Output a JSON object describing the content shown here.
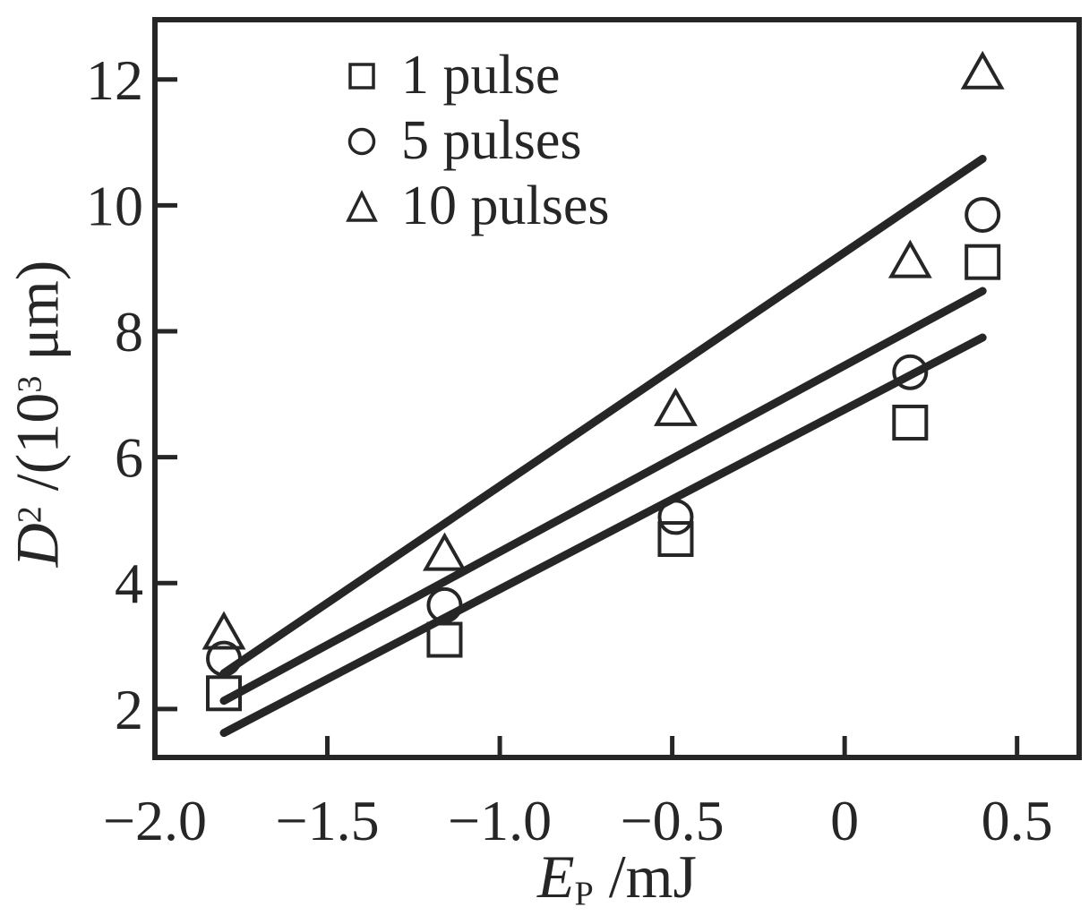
{
  "figure": {
    "background": "#ffffff",
    "ink": "#262626"
  },
  "chart_data": {
    "type": "scatter",
    "title": "",
    "xlabel": {
      "symbol": "E",
      "subscript": "P",
      "unit": " /mJ"
    },
    "ylabel": {
      "symbol": "D",
      "superscript": "2",
      "mid": " /(10",
      "exponent": "3",
      "unit": " μm)"
    },
    "xlim": [
      -2.0,
      0.68
    ],
    "ylim": [
      1.23,
      12.95
    ],
    "grid": false,
    "x_ticks": [
      -2.0,
      -1.5,
      -1.0,
      -0.5,
      0,
      0.5
    ],
    "x_tick_labels": [
      "−2.0",
      "−1.5",
      "−1.0",
      "−0.5",
      "0",
      "0.5"
    ],
    "y_ticks": [
      2,
      4,
      6,
      8,
      10,
      12
    ],
    "y_tick_labels": [
      "2",
      "4",
      "6",
      "8",
      "10",
      "12"
    ],
    "x": [
      -1.8,
      -1.16,
      -0.49,
      0.19,
      0.4
    ],
    "series": [
      {
        "name": "1 pulse",
        "marker": "square",
        "values": [
          2.25,
          3.1,
          4.7,
          6.55,
          9.1
        ],
        "fit_line": {
          "x1": -1.8,
          "y1": 1.62,
          "x2": 0.4,
          "y2": 7.9
        }
      },
      {
        "name": "5 pulses",
        "marker": "circle",
        "values": [
          2.8,
          3.65,
          5.05,
          7.35,
          9.85
        ],
        "fit_line": {
          "x1": -1.8,
          "y1": 2.13,
          "x2": 0.4,
          "y2": 8.64
        }
      },
      {
        "name": "10 pulses",
        "marker": "triangle",
        "values": [
          3.2,
          4.45,
          6.75,
          9.1,
          12.1
        ],
        "fit_line": {
          "x1": -1.8,
          "y1": 2.57,
          "x2": 0.4,
          "y2": 10.74
        }
      }
    ],
    "legend": {
      "position": "top-left-inside",
      "entries": [
        "1 pulse",
        "5 pulses",
        "10 pulses"
      ]
    }
  }
}
